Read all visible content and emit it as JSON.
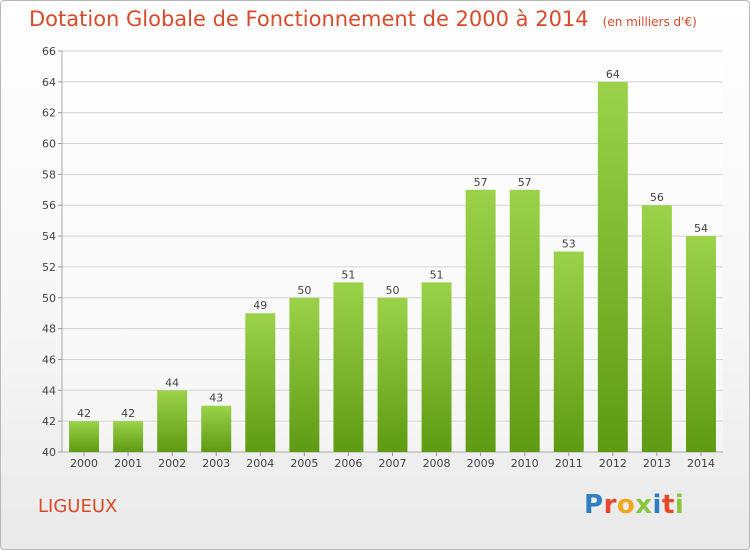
{
  "header": {
    "title": "Dotation Globale de Fonctionnement de 2000 à 2014",
    "unit": "(en milliers d'€)"
  },
  "footer": {
    "place": "LIGUEUX",
    "brand": "Proxiti"
  },
  "colors": {
    "title": "#d94a2b",
    "bar_top": "#9bd24a",
    "bar_bottom": "#5e9b12",
    "grid": "#d4d4d4"
  },
  "chart_data": {
    "type": "bar",
    "title": "Dotation Globale de Fonctionnement de 2000 à 2014",
    "subtitle": "(en milliers d'€)",
    "xlabel": "",
    "ylabel": "",
    "categories": [
      "2000",
      "2001",
      "2002",
      "2003",
      "2004",
      "2005",
      "2006",
      "2007",
      "2008",
      "2009",
      "2010",
      "2011",
      "2012",
      "2013",
      "2014"
    ],
    "values": [
      42,
      42,
      44,
      43,
      49,
      50,
      51,
      50,
      51,
      57,
      57,
      53,
      64,
      56,
      54
    ],
    "ylim": [
      40,
      66
    ],
    "yticks": [
      40,
      42,
      44,
      46,
      48,
      50,
      52,
      54,
      56,
      58,
      60,
      62,
      64,
      66
    ],
    "grid": "horizontal",
    "data_labels": true
  }
}
